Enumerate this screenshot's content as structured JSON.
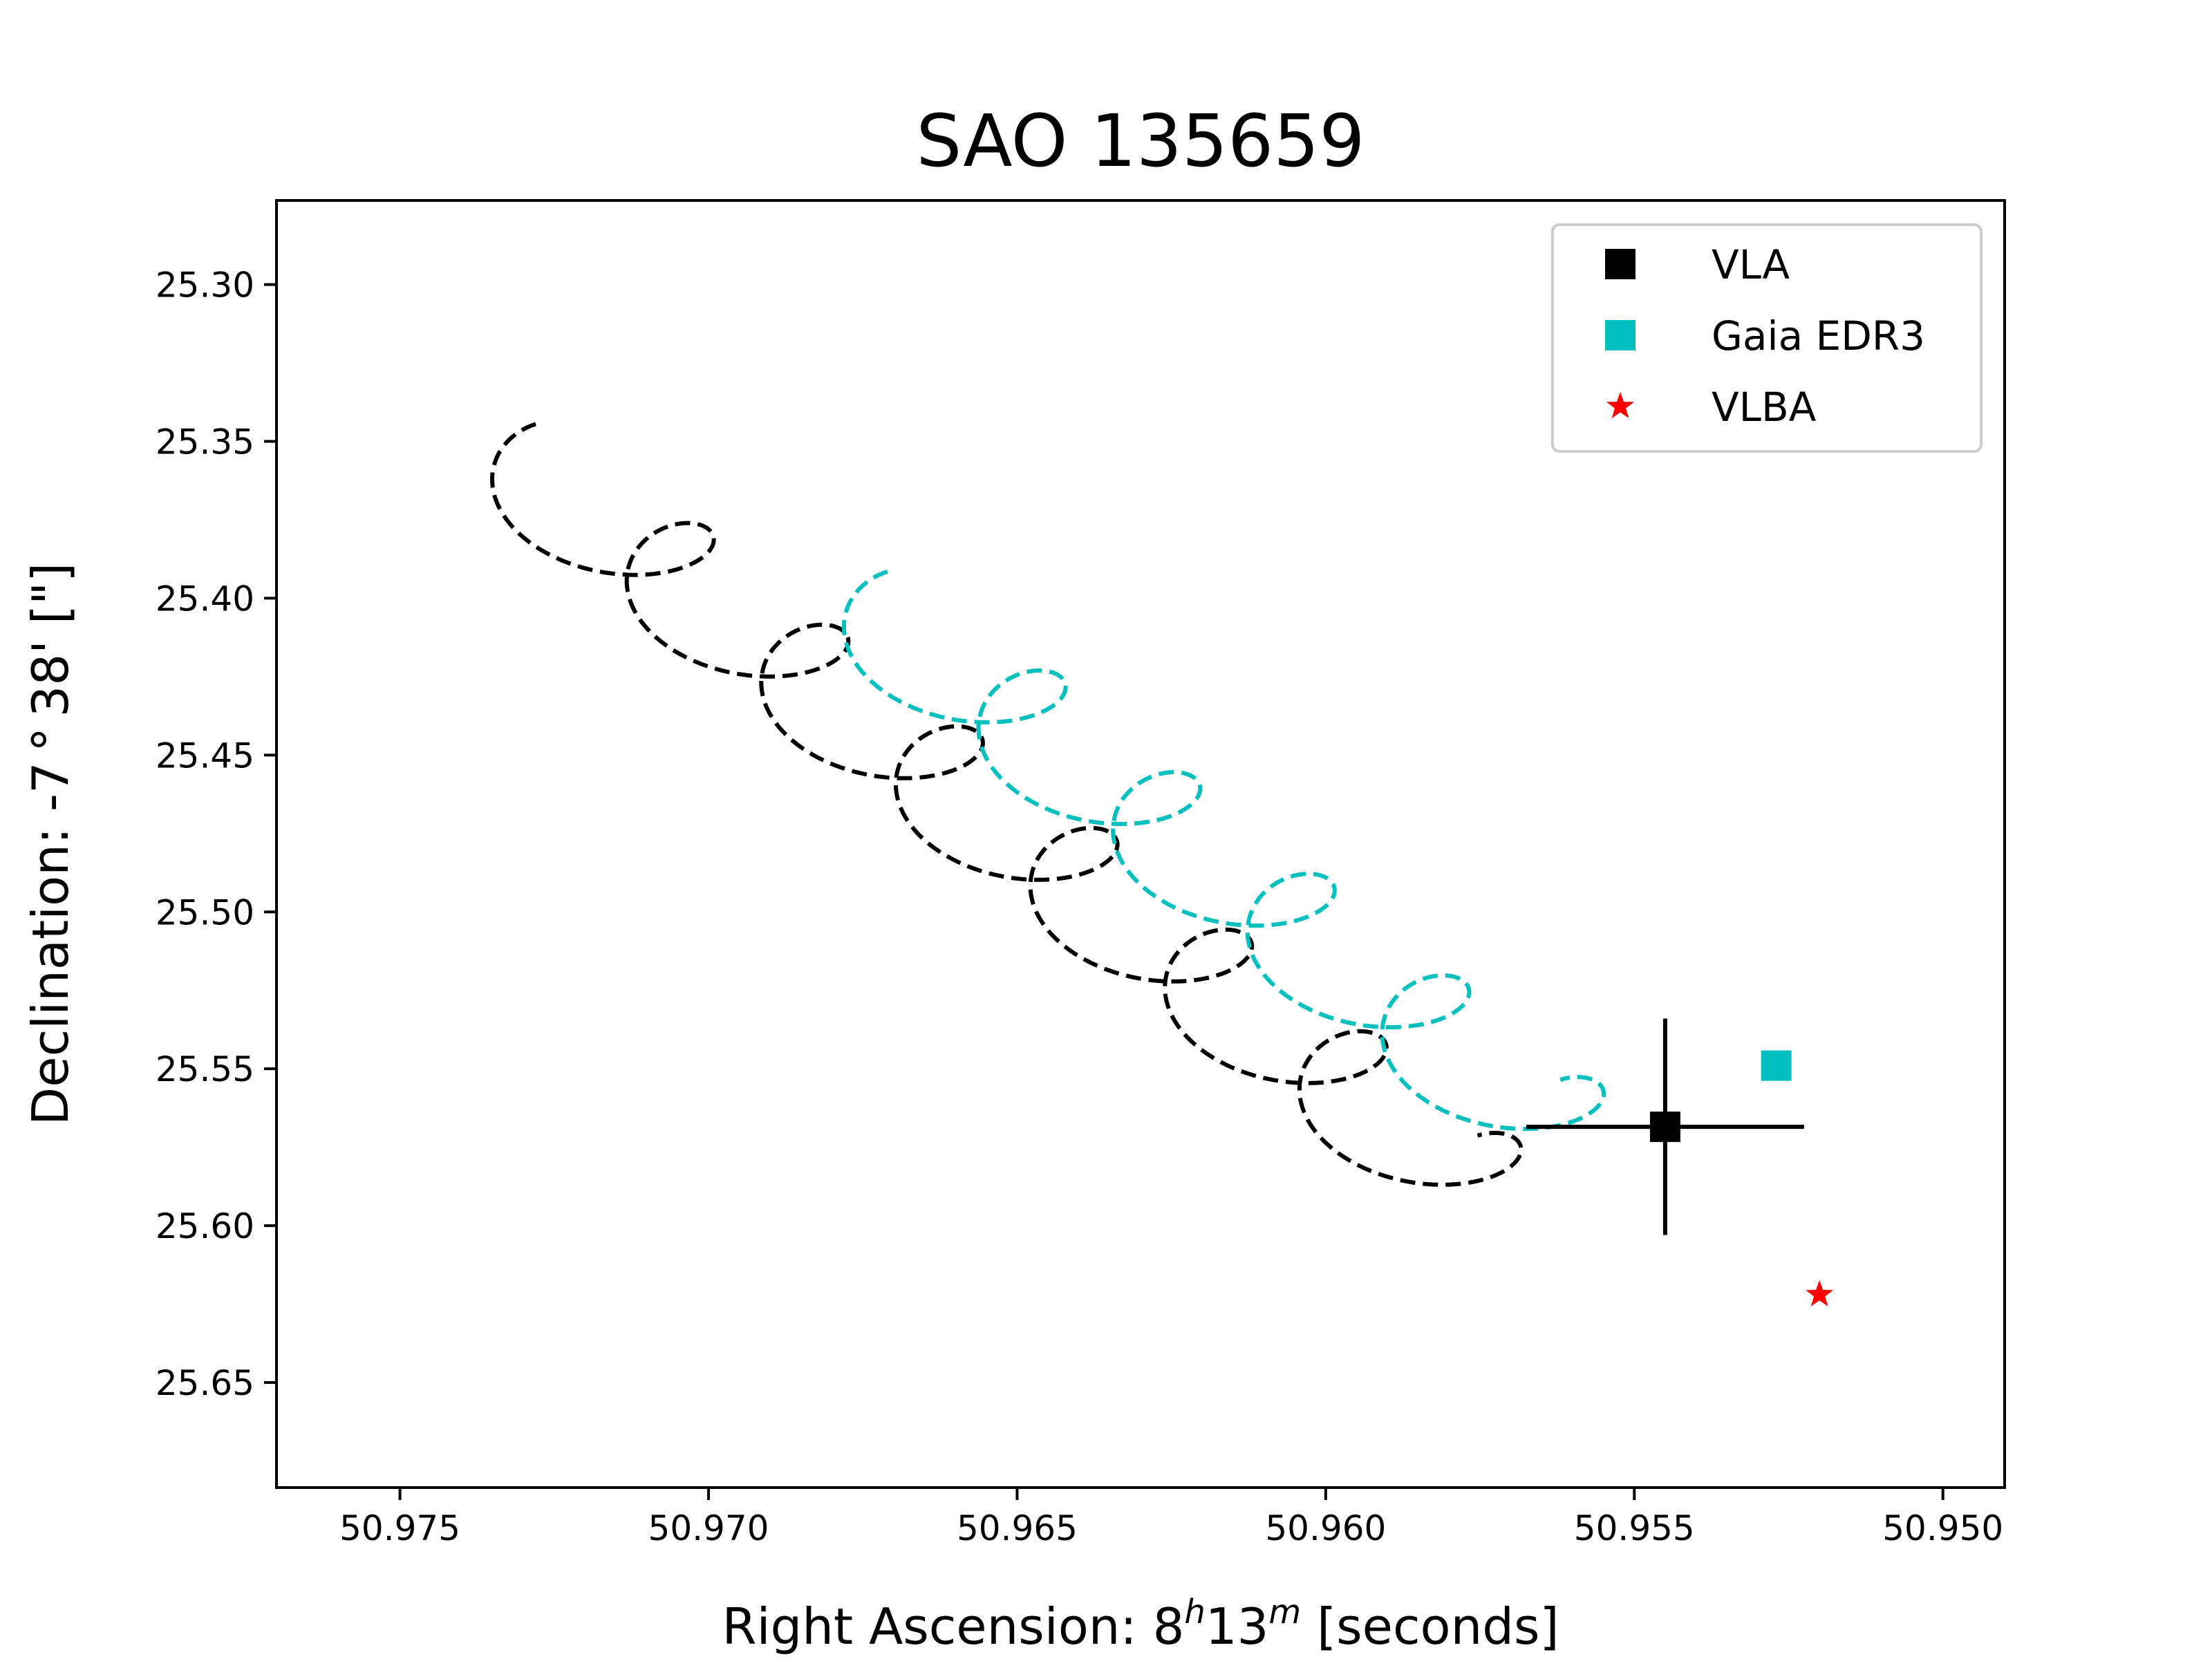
{
  "chart_data": {
    "type": "scatter",
    "title": "SAO 135659",
    "xlabel": {
      "prefix": "Right Ascension: 8",
      "h": "h",
      "mid": "13",
      "m": "m",
      "suffix": " [seconds]"
    },
    "ylabel": "Declination: -7 ° 38' [\"]",
    "xlim": [
      50.977,
      50.949
    ],
    "ylim": [
      25.6835,
      25.2732
    ],
    "x_inverted": true,
    "y_inverted": true,
    "xticks": [
      50.975,
      50.97,
      50.965,
      50.96,
      50.955,
      50.95
    ],
    "xtick_labels": [
      "50.975",
      "50.970",
      "50.965",
      "50.960",
      "50.955",
      "50.950"
    ],
    "yticks": [
      25.3,
      25.35,
      25.4,
      25.45,
      25.5,
      25.55,
      25.6,
      25.65
    ],
    "ytick_labels": [
      "25.30",
      "25.35",
      "25.40",
      "25.45",
      "25.50",
      "25.55",
      "25.60",
      "25.65"
    ],
    "grid": false,
    "legend": {
      "position": "top-right",
      "entries": [
        {
          "name": "VLA",
          "marker": "square",
          "color": "#000000"
        },
        {
          "name": "Gaia EDR3",
          "marker": "square",
          "color": "#00bfbf"
        },
        {
          "name": "VLBA",
          "marker": "star",
          "color": "#ff0000"
        }
      ]
    },
    "series": [
      {
        "name": "VLA",
        "marker": "square",
        "color": "#000000",
        "points": [
          {
            "x": 50.9545,
            "y": 25.5685,
            "x_err": 0.00225,
            "y_err": 0.0345
          }
        ]
      },
      {
        "name": "Gaia EDR3",
        "marker": "square",
        "color": "#00bfbf",
        "points": [
          {
            "x": 50.9527,
            "y": 25.549
          }
        ]
      },
      {
        "name": "VLBA",
        "marker": "star",
        "color": "#ff0000",
        "points": [
          {
            "x": 50.952,
            "y": 25.622
          }
        ]
      }
    ],
    "tracks": [
      {
        "color": "#000000",
        "style": "dashed",
        "x_start": 50.9728,
        "y_start": 25.3445,
        "ra_per_cycle": 0.00218,
        "dec_per_cycle": 0.0324,
        "ra_amplitude": 0.0012,
        "dec_amplitude": 0.0155,
        "cycles": 7
      },
      {
        "color": "#00bfbf",
        "style": "dashed",
        "x_start": 50.9671,
        "y_start": 25.3915,
        "ra_per_cycle": 0.00218,
        "dec_per_cycle": 0.0324,
        "ra_amplitude": 0.0012,
        "dec_amplitude": 0.0155,
        "cycles": 5
      }
    ]
  }
}
